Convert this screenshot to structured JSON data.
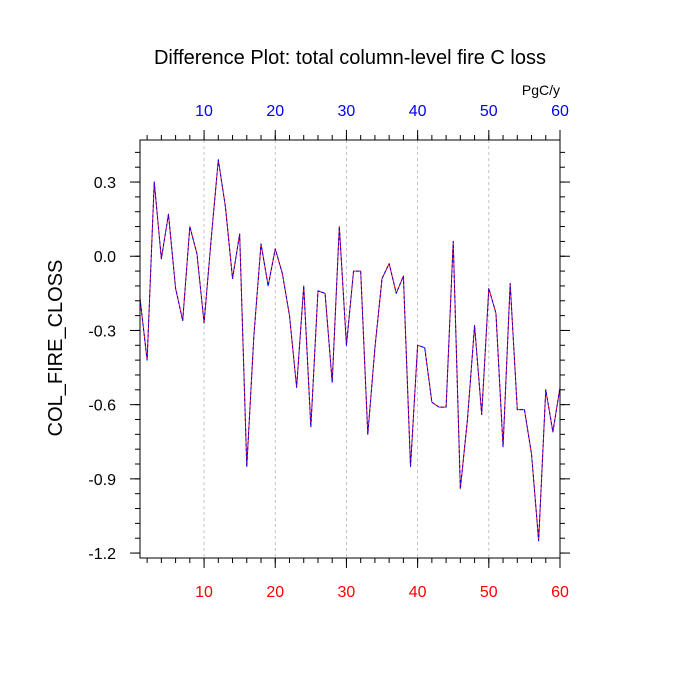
{
  "chart_data": {
    "type": "line",
    "title": "Difference Plot: total column-level fire C loss",
    "ylabel": "COL_FIRE_CLOSS",
    "units": "PgC/y",
    "xlim": [
      1,
      60
    ],
    "ylim": [
      -1.22,
      0.47
    ],
    "x_ticks": [
      10,
      20,
      30,
      40,
      50,
      60
    ],
    "x_tick_labels": [
      "10",
      "20",
      "30",
      "40",
      "50",
      "60"
    ],
    "y_ticks": [
      0.3,
      0.0,
      -0.3,
      -0.6,
      -0.9,
      -1.2
    ],
    "y_tick_labels": [
      "0.3",
      "0.0",
      "-0.3",
      "-0.6",
      "-0.9",
      "-1.2"
    ],
    "grid": "vertical dashed at x ticks",
    "colors": {
      "bottom_axis_labels": "#ff0000",
      "top_axis_labels": "#0000ff",
      "series_a": "#ff0000",
      "series_b": "#0000ff"
    },
    "x": [
      1,
      2,
      3,
      4,
      5,
      6,
      7,
      8,
      9,
      10,
      11,
      12,
      13,
      14,
      15,
      16,
      17,
      18,
      19,
      20,
      21,
      22,
      23,
      24,
      25,
      26,
      27,
      28,
      29,
      30,
      31,
      32,
      33,
      34,
      35,
      36,
      37,
      38,
      39,
      40,
      41,
      42,
      43,
      44,
      45,
      46,
      47,
      48,
      49,
      50,
      51,
      52,
      53,
      54,
      55,
      56,
      57,
      58,
      59,
      60
    ],
    "series": [
      {
        "values": [
          -0.17,
          -0.42,
          0.3,
          -0.01,
          0.17,
          -0.13,
          -0.26,
          0.12,
          0.01,
          -0.27,
          0.07,
          0.39,
          0.2,
          -0.09,
          0.09,
          -0.85,
          -0.32,
          0.05,
          -0.12,
          0.03,
          -0.07,
          -0.24,
          -0.53,
          -0.12,
          -0.69,
          -0.14,
          -0.15,
          -0.51,
          0.12,
          -0.36,
          -0.06,
          -0.06,
          -0.72,
          -0.37,
          -0.09,
          -0.03,
          -0.15,
          -0.08,
          -0.85,
          -0.36,
          -0.37,
          -0.59,
          -0.61,
          -0.61,
          0.06,
          -0.94,
          -0.66,
          -0.28,
          -0.64,
          -0.13,
          -0.23,
          -0.77,
          -0.11,
          -0.62,
          -0.62,
          -0.8,
          -1.15,
          -0.54,
          -0.71,
          -0.53
        ]
      },
      {
        "values": [
          -0.17,
          -0.42,
          0.3,
          -0.01,
          0.17,
          -0.13,
          -0.26,
          0.12,
          0.01,
          -0.27,
          0.07,
          0.39,
          0.2,
          -0.09,
          0.09,
          -0.85,
          -0.32,
          0.05,
          -0.12,
          0.03,
          -0.07,
          -0.24,
          -0.53,
          -0.12,
          -0.69,
          -0.14,
          -0.15,
          -0.51,
          0.12,
          -0.36,
          -0.06,
          -0.06,
          -0.72,
          -0.37,
          -0.09,
          -0.03,
          -0.15,
          -0.08,
          -0.85,
          -0.36,
          -0.37,
          -0.59,
          -0.61,
          -0.61,
          0.06,
          -0.94,
          -0.66,
          -0.28,
          -0.64,
          -0.13,
          -0.23,
          -0.77,
          -0.11,
          -0.62,
          -0.62,
          -0.8,
          -1.15,
          -0.54,
          -0.71,
          -0.53
        ]
      }
    ]
  }
}
